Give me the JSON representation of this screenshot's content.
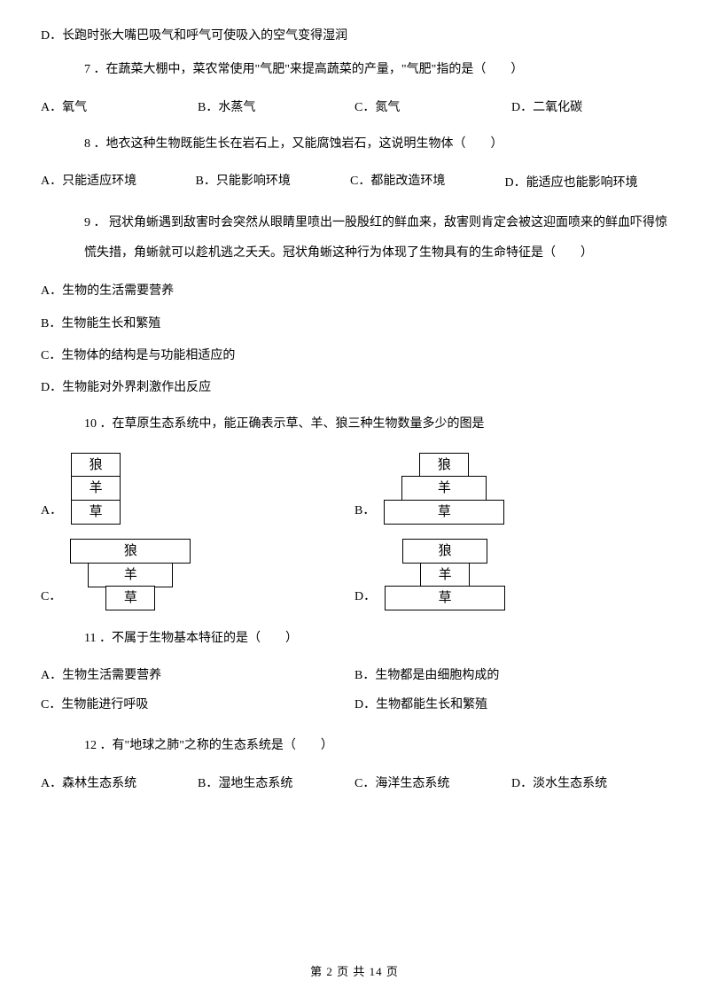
{
  "q6_optD": "D．长跑时张大嘴巴吸气和呼气可使吸入的空气变得湿润",
  "q7": {
    "stem": "7 ．在蔬菜大棚中，菜农常使用\"气肥\"来提高蔬菜的产量，\"气肥\"指的是（　　）",
    "A": "A．氧气",
    "B": "B．水蒸气",
    "C": "C．氮气",
    "D": "D．二氧化碳"
  },
  "q8": {
    "stem": "8 ．地衣这种生物既能生长在岩石上，又能腐蚀岩石，这说明生物体（　　）",
    "A": "A．只能适应环境",
    "B": "B．只能影响环境",
    "C": "C．都能改造环境",
    "D": "D．能适应也能影响环境"
  },
  "q9": {
    "stem": "9 ． 冠状角蜥遇到敌害时会突然从眼睛里喷出一股殷红的鲜血来，敌害则肯定会被这迎面喷来的鲜血吓得惊慌失措，角蜥就可以趁机逃之夭夭。冠状角蜥这种行为体现了生物具有的生命特征是（　　）",
    "A": "A．生物的生活需要营养",
    "B": "B．生物能生长和繁殖",
    "C": "C．生物体的结构是与功能相适应的",
    "D": "D．生物能对外界刺激作出反应"
  },
  "q10": {
    "stem": "10 ．在草原生态系统中，能正确表示草、羊、狼三种生物数量多少的图是",
    "labels": {
      "wolf": "狼",
      "sheep": "羊",
      "grass": "草"
    },
    "A": "A．",
    "B": "B．",
    "C": "C．",
    "D": "D．"
  },
  "q11": {
    "stem": "11 ．不属于生物基本特征的是（　　）",
    "A": "A．生物生活需要营养",
    "B": "B．生物都是由细胞构成的",
    "C": "C．生物能进行呼吸",
    "D": "D．生物都能生长和繁殖"
  },
  "q12": {
    "stem": "12 ．有\"地球之肺\"之称的生态系统是（　　）",
    "A": "A．森林生态系统",
    "B": "B．湿地生态系统",
    "C": "C．海洋生态系统",
    "D": "D．淡水生态系统"
  },
  "footer": "第 2 页 共 14 页"
}
